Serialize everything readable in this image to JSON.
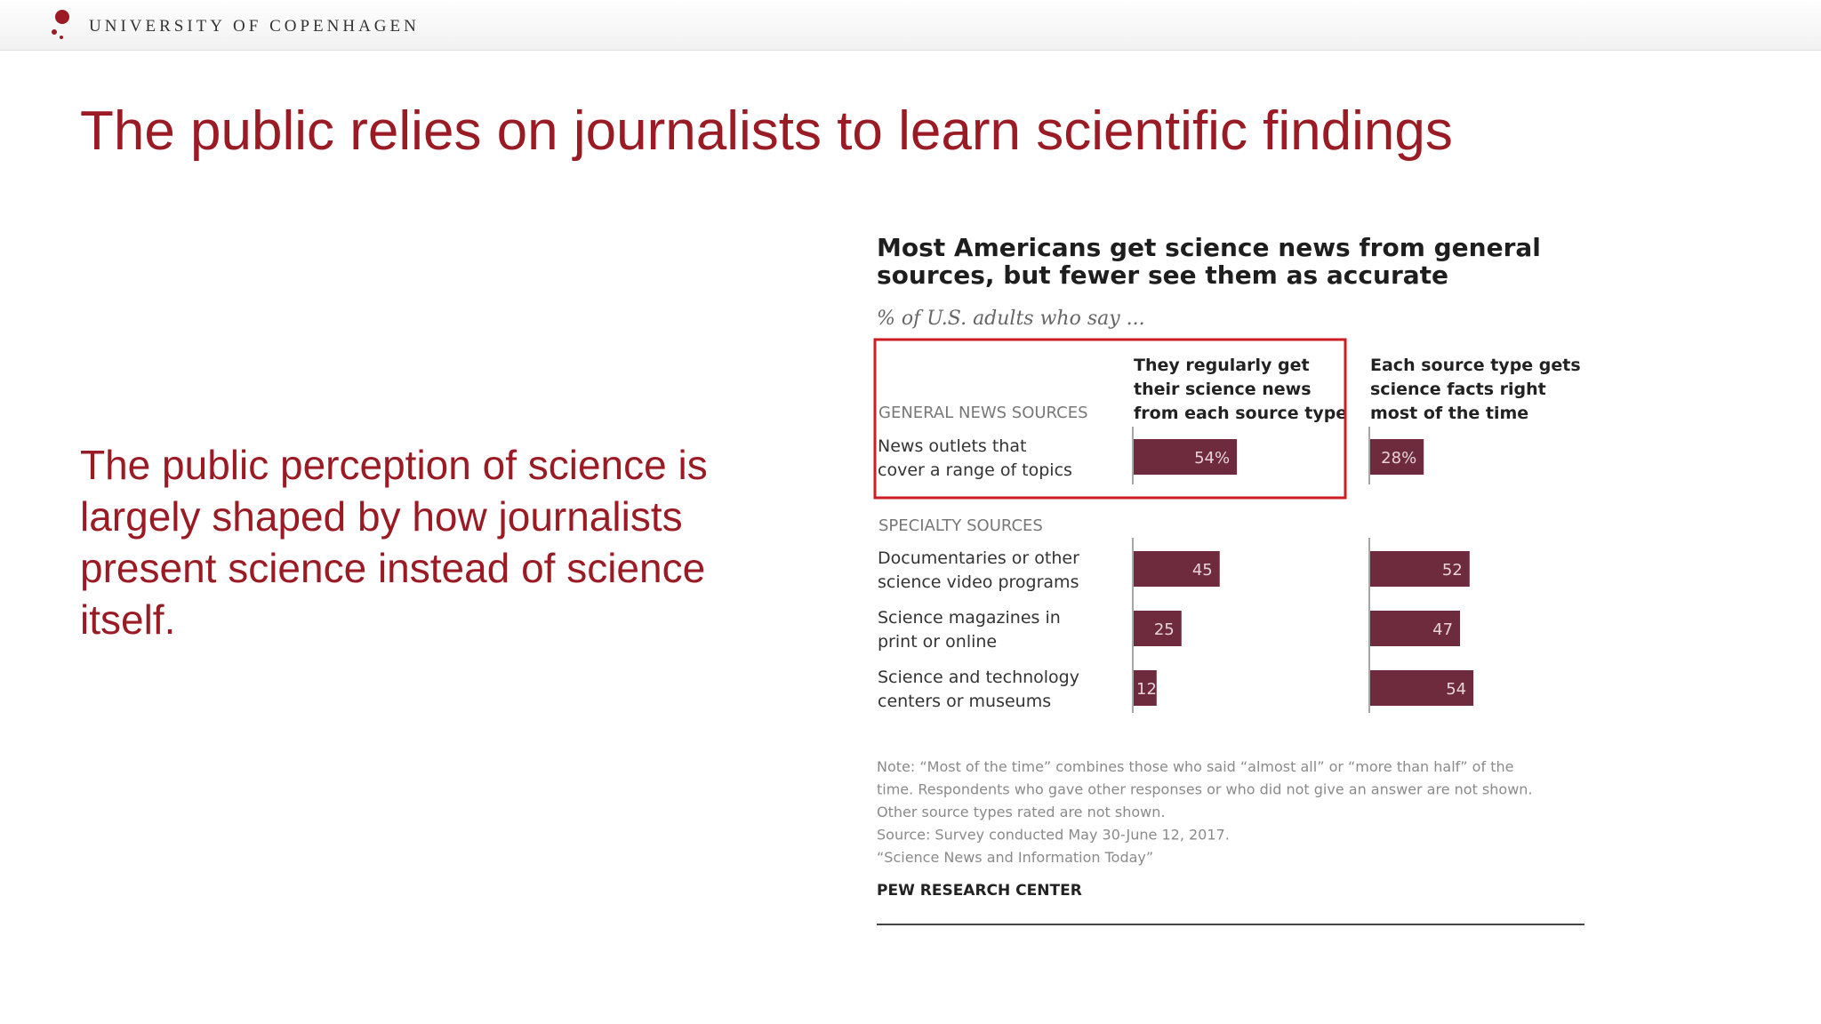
{
  "header": {
    "institution": "UNIVERSITY OF COPENHAGEN",
    "logo_icon": "university-crest-icon"
  },
  "slide": {
    "title": "The public relies on journalists to learn scientific findings",
    "body": "The public perception of science is largely shaped by how journalists present science instead of science itself."
  },
  "colors": {
    "accent": "#9b1b25",
    "bar": "#6e2b3d",
    "highlight_box": "#cc1d24"
  },
  "chart_data": {
    "type": "bar",
    "orientation": "horizontal",
    "title_lines": [
      "Most Americans get science news from general",
      "sources, but fewer see them as accurate"
    ],
    "subtitle": "% of U.S. adults who say ...",
    "column_headers": [
      [
        "They regularly get",
        "their science news",
        "from each source type"
      ],
      [
        "Each source type gets",
        "science facts right",
        "most of the time"
      ]
    ],
    "sections": [
      {
        "label": "GENERAL NEWS SOURCES",
        "categories": [
          [
            "News outlets that",
            "cover a range of topics"
          ]
        ],
        "highlighted": true
      },
      {
        "label": "SPECIALTY SOURCES",
        "categories": [
          [
            "Documentaries or other",
            "science video programs"
          ],
          [
            "Science magazines in",
            "print or online"
          ],
          [
            "Science and technology",
            "centers or museums"
          ]
        ],
        "highlighted": false
      }
    ],
    "series": [
      {
        "values": [
          54,
          45,
          25,
          12
        ],
        "labels": [
          "54%",
          "45",
          "25",
          "12"
        ]
      },
      {
        "values": [
          28,
          52,
          47,
          54
        ],
        "labels": [
          "28%",
          "52",
          "47",
          "54"
        ]
      }
    ],
    "xlim": [
      0,
      100
    ],
    "note_lines": [
      "Note: “Most of the time” combines those who said “almost all” or “more than half” of the",
      "time. Respondents who gave other responses or who did not give an answer are not shown.",
      "Other source types rated are not shown.",
      "Source: Survey conducted May 30-June 12, 2017.",
      "“Science News and Information Today”"
    ],
    "source_brand": "PEW RESEARCH CENTER"
  }
}
